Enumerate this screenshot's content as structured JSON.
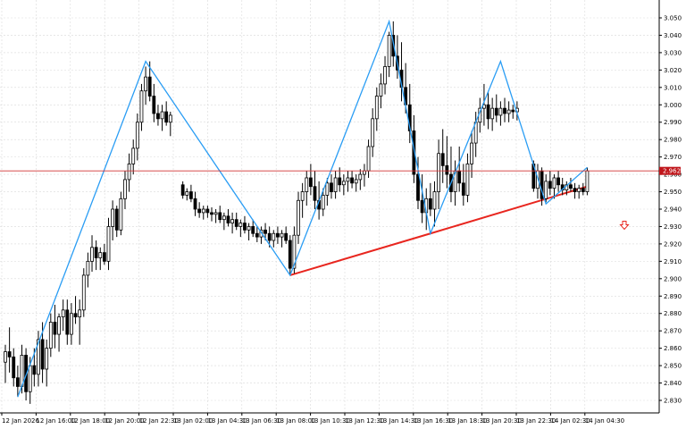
{
  "chart_data": {
    "type": "candlestick",
    "title": "",
    "xlabel": "",
    "ylabel": "",
    "ylim": [
      2.825,
      3.055
    ],
    "grid": true,
    "colors": {
      "background": "#ffffff",
      "grid": "#d9d9d9",
      "candle_outline": "#000000",
      "bull_body": "#ffffff",
      "bear_body": "#000000",
      "zigzag": "#2a9df4",
      "trendline": "#e8261f",
      "current_price_line": "#d03434",
      "current_price_tag": "#c0161b",
      "sell_arrow": "#e8261f"
    },
    "y_ticks": [
      "3.050",
      "3.040",
      "3.030",
      "3.020",
      "3.010",
      "3.000",
      "2.990",
      "2.980",
      "2.970",
      "2.960",
      "2.950",
      "2.940",
      "2.930",
      "2.920",
      "2.910",
      "2.900",
      "2.890",
      "2.880",
      "2.870",
      "2.860",
      "2.850",
      "2.840",
      "2.830"
    ],
    "x_ticks": [
      "12 Jan 2026",
      "12 Jan 16:00",
      "12 Jan 18:00",
      "12 Jan 20:00",
      "12 Jan 22:30",
      "13 Jan 02:00",
      "13 Jan 04:30",
      "13 Jan 06:30",
      "13 Jan 08:00",
      "13 Jan 10:30",
      "13 Jan 12:30",
      "13 Jan 14:30",
      "13 Jan 16:30",
      "13 Jan 18:30",
      "13 Jan 20:30",
      "13 Jan 22:30",
      "14 Jan 02:30",
      "14 Jan 04:30"
    ],
    "current_price": 2.962,
    "current_price_label": "2.962",
    "candles": [
      {
        "i": 0,
        "o": 2.852,
        "h": 2.862,
        "l": 2.84,
        "c": 2.858
      },
      {
        "i": 1,
        "o": 2.858,
        "h": 2.872,
        "l": 2.846,
        "c": 2.855
      },
      {
        "i": 2,
        "o": 2.855,
        "h": 2.86,
        "l": 2.838,
        "c": 2.843
      },
      {
        "i": 3,
        "o": 2.843,
        "h": 2.85,
        "l": 2.832,
        "c": 2.838
      },
      {
        "i": 4,
        "o": 2.838,
        "h": 2.862,
        "l": 2.834,
        "c": 2.856
      },
      {
        "i": 5,
        "o": 2.856,
        "h": 2.86,
        "l": 2.83,
        "c": 2.835
      },
      {
        "i": 6,
        "o": 2.835,
        "h": 2.855,
        "l": 2.828,
        "c": 2.85
      },
      {
        "i": 7,
        "o": 2.85,
        "h": 2.86,
        "l": 2.838,
        "c": 2.845
      },
      {
        "i": 8,
        "o": 2.845,
        "h": 2.87,
        "l": 2.838,
        "c": 2.865
      },
      {
        "i": 9,
        "o": 2.865,
        "h": 2.875,
        "l": 2.84,
        "c": 2.848
      },
      {
        "i": 10,
        "o": 2.848,
        "h": 2.865,
        "l": 2.838,
        "c": 2.86
      },
      {
        "i": 11,
        "o": 2.86,
        "h": 2.88,
        "l": 2.855,
        "c": 2.875
      },
      {
        "i": 12,
        "o": 2.875,
        "h": 2.885,
        "l": 2.86,
        "c": 2.868
      },
      {
        "i": 13,
        "o": 2.868,
        "h": 2.88,
        "l": 2.858,
        "c": 2.878
      },
      {
        "i": 14,
        "o": 2.878,
        "h": 2.888,
        "l": 2.87,
        "c": 2.882
      },
      {
        "i": 15,
        "o": 2.882,
        "h": 2.888,
        "l": 2.862,
        "c": 2.868
      },
      {
        "i": 16,
        "o": 2.868,
        "h": 2.886,
        "l": 2.862,
        "c": 2.88
      },
      {
        "i": 17,
        "o": 2.88,
        "h": 2.89,
        "l": 2.874,
        "c": 2.878
      },
      {
        "i": 18,
        "o": 2.878,
        "h": 2.888,
        "l": 2.862,
        "c": 2.882
      },
      {
        "i": 19,
        "o": 2.882,
        "h": 2.906,
        "l": 2.878,
        "c": 2.902
      },
      {
        "i": 20,
        "o": 2.902,
        "h": 2.915,
        "l": 2.895,
        "c": 2.91
      },
      {
        "i": 21,
        "o": 2.91,
        "h": 2.925,
        "l": 2.904,
        "c": 2.918
      },
      {
        "i": 22,
        "o": 2.918,
        "h": 2.922,
        "l": 2.905,
        "c": 2.912
      },
      {
        "i": 23,
        "o": 2.912,
        "h": 2.918,
        "l": 2.905,
        "c": 2.915
      },
      {
        "i": 24,
        "o": 2.915,
        "h": 2.92,
        "l": 2.908,
        "c": 2.91
      },
      {
        "i": 25,
        "o": 2.91,
        "h": 2.935,
        "l": 2.905,
        "c": 2.93
      },
      {
        "i": 26,
        "o": 2.93,
        "h": 2.945,
        "l": 2.922,
        "c": 2.94
      },
      {
        "i": 27,
        "o": 2.94,
        "h": 2.942,
        "l": 2.924,
        "c": 2.928
      },
      {
        "i": 28,
        "o": 2.928,
        "h": 2.95,
        "l": 2.925,
        "c": 2.946
      },
      {
        "i": 29,
        "o": 2.946,
        "h": 2.962,
        "l": 2.94,
        "c": 2.957
      },
      {
        "i": 30,
        "o": 2.957,
        "h": 2.972,
        "l": 2.95,
        "c": 2.966
      },
      {
        "i": 31,
        "o": 2.966,
        "h": 2.98,
        "l": 2.96,
        "c": 2.975
      },
      {
        "i": 32,
        "o": 2.975,
        "h": 2.995,
        "l": 2.968,
        "c": 2.99
      },
      {
        "i": 33,
        "o": 2.99,
        "h": 3.012,
        "l": 2.985,
        "c": 3.008
      },
      {
        "i": 34,
        "o": 3.008,
        "h": 3.022,
        "l": 3.0,
        "c": 3.016
      },
      {
        "i": 35,
        "o": 3.016,
        "h": 3.025,
        "l": 3.002,
        "c": 3.005
      },
      {
        "i": 36,
        "o": 3.005,
        "h": 3.012,
        "l": 2.99,
        "c": 2.995
      },
      {
        "i": 37,
        "o": 2.995,
        "h": 3.0,
        "l": 2.988,
        "c": 2.992
      },
      {
        "i": 38,
        "o": 2.992,
        "h": 3.0,
        "l": 2.985,
        "c": 2.996
      },
      {
        "i": 39,
        "o": 2.996,
        "h": 3.002,
        "l": 2.988,
        "c": 2.99
      },
      {
        "i": 40,
        "o": 2.99,
        "h": 2.996,
        "l": 2.982,
        "c": 2.994
      },
      {
        "i": 43,
        "o": 2.954,
        "h": 2.956,
        "l": 2.946,
        "c": 2.948
      },
      {
        "i": 44,
        "o": 2.948,
        "h": 2.952,
        "l": 2.945,
        "c": 2.95
      },
      {
        "i": 45,
        "o": 2.95,
        "h": 2.954,
        "l": 2.944,
        "c": 2.946
      },
      {
        "i": 46,
        "o": 2.946,
        "h": 2.95,
        "l": 2.936,
        "c": 2.94
      },
      {
        "i": 47,
        "o": 2.94,
        "h": 2.944,
        "l": 2.935,
        "c": 2.938
      },
      {
        "i": 48,
        "o": 2.938,
        "h": 2.942,
        "l": 2.934,
        "c": 2.94
      },
      {
        "i": 49,
        "o": 2.94,
        "h": 2.942,
        "l": 2.935,
        "c": 2.938
      },
      {
        "i": 50,
        "o": 2.938,
        "h": 2.941,
        "l": 2.933,
        "c": 2.937
      },
      {
        "i": 51,
        "o": 2.937,
        "h": 2.94,
        "l": 2.932,
        "c": 2.938
      },
      {
        "i": 52,
        "o": 2.938,
        "h": 2.942,
        "l": 2.932,
        "c": 2.934
      },
      {
        "i": 53,
        "o": 2.934,
        "h": 2.938,
        "l": 2.928,
        "c": 2.936
      },
      {
        "i": 54,
        "o": 2.936,
        "h": 2.94,
        "l": 2.93,
        "c": 2.932
      },
      {
        "i": 55,
        "o": 2.932,
        "h": 2.938,
        "l": 2.926,
        "c": 2.934
      },
      {
        "i": 56,
        "o": 2.934,
        "h": 2.938,
        "l": 2.928,
        "c": 2.93
      },
      {
        "i": 57,
        "o": 2.93,
        "h": 2.934,
        "l": 2.924,
        "c": 2.932
      },
      {
        "i": 58,
        "o": 2.932,
        "h": 2.936,
        "l": 2.926,
        "c": 2.928
      },
      {
        "i": 59,
        "o": 2.928,
        "h": 2.932,
        "l": 2.922,
        "c": 2.93
      },
      {
        "i": 60,
        "o": 2.93,
        "h": 2.934,
        "l": 2.924,
        "c": 2.926
      },
      {
        "i": 61,
        "o": 2.926,
        "h": 2.93,
        "l": 2.921,
        "c": 2.924
      },
      {
        "i": 62,
        "o": 2.924,
        "h": 2.93,
        "l": 2.92,
        "c": 2.928
      },
      {
        "i": 63,
        "o": 2.928,
        "h": 2.932,
        "l": 2.922,
        "c": 2.926
      },
      {
        "i": 64,
        "o": 2.926,
        "h": 2.93,
        "l": 2.918,
        "c": 2.922
      },
      {
        "i": 65,
        "o": 2.922,
        "h": 2.928,
        "l": 2.918,
        "c": 2.926
      },
      {
        "i": 66,
        "o": 2.926,
        "h": 2.93,
        "l": 2.92,
        "c": 2.924
      },
      {
        "i": 67,
        "o": 2.924,
        "h": 2.928,
        "l": 2.918,
        "c": 2.926
      },
      {
        "i": 68,
        "o": 2.926,
        "h": 2.93,
        "l": 2.92,
        "c": 2.922
      },
      {
        "i": 69,
        "o": 2.922,
        "h": 2.925,
        "l": 2.902,
        "c": 2.906
      },
      {
        "i": 70,
        "o": 2.906,
        "h": 2.93,
        "l": 2.903,
        "c": 2.925
      },
      {
        "i": 71,
        "o": 2.925,
        "h": 2.95,
        "l": 2.92,
        "c": 2.945
      },
      {
        "i": 72,
        "o": 2.945,
        "h": 2.955,
        "l": 2.935,
        "c": 2.95
      },
      {
        "i": 73,
        "o": 2.95,
        "h": 2.962,
        "l": 2.942,
        "c": 2.958
      },
      {
        "i": 74,
        "o": 2.958,
        "h": 2.966,
        "l": 2.948,
        "c": 2.953
      },
      {
        "i": 75,
        "o": 2.953,
        "h": 2.962,
        "l": 2.94,
        "c": 2.945
      },
      {
        "i": 76,
        "o": 2.945,
        "h": 2.956,
        "l": 2.934,
        "c": 2.94
      },
      {
        "i": 77,
        "o": 2.94,
        "h": 2.952,
        "l": 2.936,
        "c": 2.948
      },
      {
        "i": 78,
        "o": 2.948,
        "h": 2.958,
        "l": 2.942,
        "c": 2.955
      },
      {
        "i": 79,
        "o": 2.955,
        "h": 2.96,
        "l": 2.946,
        "c": 2.95
      },
      {
        "i": 80,
        "o": 2.95,
        "h": 2.962,
        "l": 2.946,
        "c": 2.958
      },
      {
        "i": 81,
        "o": 2.958,
        "h": 2.964,
        "l": 2.95,
        "c": 2.954
      },
      {
        "i": 82,
        "o": 2.954,
        "h": 2.96,
        "l": 2.948,
        "c": 2.956
      },
      {
        "i": 83,
        "o": 2.956,
        "h": 2.962,
        "l": 2.95,
        "c": 2.958
      },
      {
        "i": 84,
        "o": 2.958,
        "h": 2.962,
        "l": 2.952,
        "c": 2.955
      },
      {
        "i": 85,
        "o": 2.955,
        "h": 2.96,
        "l": 2.95,
        "c": 2.957
      },
      {
        "i": 86,
        "o": 2.957,
        "h": 2.963,
        "l": 2.951,
        "c": 2.96
      },
      {
        "i": 87,
        "o": 2.96,
        "h": 2.966,
        "l": 2.953,
        "c": 2.962
      },
      {
        "i": 88,
        "o": 2.962,
        "h": 2.98,
        "l": 2.958,
        "c": 2.976
      },
      {
        "i": 89,
        "o": 2.976,
        "h": 2.998,
        "l": 2.97,
        "c": 2.992
      },
      {
        "i": 90,
        "o": 2.992,
        "h": 3.01,
        "l": 2.985,
        "c": 3.005
      },
      {
        "i": 91,
        "o": 3.005,
        "h": 3.018,
        "l": 2.998,
        "c": 3.012
      },
      {
        "i": 92,
        "o": 3.012,
        "h": 3.028,
        "l": 3.006,
        "c": 3.022
      },
      {
        "i": 93,
        "o": 3.022,
        "h": 3.042,
        "l": 3.016,
        "c": 3.04
      },
      {
        "i": 94,
        "o": 3.04,
        "h": 3.048,
        "l": 3.022,
        "c": 3.028
      },
      {
        "i": 95,
        "o": 3.028,
        "h": 3.04,
        "l": 3.015,
        "c": 3.02
      },
      {
        "i": 96,
        "o": 3.02,
        "h": 3.036,
        "l": 3.002,
        "c": 3.01
      },
      {
        "i": 97,
        "o": 3.01,
        "h": 3.024,
        "l": 2.995,
        "c": 3.0
      },
      {
        "i": 98,
        "o": 3.0,
        "h": 3.012,
        "l": 2.978,
        "c": 2.985
      },
      {
        "i": 99,
        "o": 2.985,
        "h": 2.994,
        "l": 2.955,
        "c": 2.96
      },
      {
        "i": 100,
        "o": 2.96,
        "h": 2.97,
        "l": 2.94,
        "c": 2.945
      },
      {
        "i": 101,
        "o": 2.945,
        "h": 2.96,
        "l": 2.932,
        "c": 2.938
      },
      {
        "i": 102,
        "o": 2.938,
        "h": 2.952,
        "l": 2.928,
        "c": 2.946
      },
      {
        "i": 103,
        "o": 2.946,
        "h": 2.955,
        "l": 2.936,
        "c": 2.94
      },
      {
        "i": 104,
        "o": 2.94,
        "h": 2.956,
        "l": 2.93,
        "c": 2.95
      },
      {
        "i": 105,
        "o": 2.95,
        "h": 2.98,
        "l": 2.94,
        "c": 2.972
      },
      {
        "i": 106,
        "o": 2.972,
        "h": 2.986,
        "l": 2.955,
        "c": 2.965
      },
      {
        "i": 107,
        "o": 2.965,
        "h": 2.982,
        "l": 2.952,
        "c": 2.96
      },
      {
        "i": 108,
        "o": 2.96,
        "h": 2.976,
        "l": 2.944,
        "c": 2.95
      },
      {
        "i": 109,
        "o": 2.95,
        "h": 2.968,
        "l": 2.942,
        "c": 2.962
      },
      {
        "i": 110,
        "o": 2.962,
        "h": 2.976,
        "l": 2.95,
        "c": 2.955
      },
      {
        "i": 111,
        "o": 2.955,
        "h": 2.966,
        "l": 2.942,
        "c": 2.948
      },
      {
        "i": 112,
        "o": 2.948,
        "h": 2.972,
        "l": 2.944,
        "c": 2.966
      },
      {
        "i": 113,
        "o": 2.966,
        "h": 2.985,
        "l": 2.958,
        "c": 2.978
      },
      {
        "i": 114,
        "o": 2.978,
        "h": 2.996,
        "l": 2.97,
        "c": 2.99
      },
      {
        "i": 115,
        "o": 2.99,
        "h": 3.004,
        "l": 2.984,
        "c": 2.998
      },
      {
        "i": 116,
        "o": 2.998,
        "h": 3.012,
        "l": 2.988,
        "c": 3.0
      },
      {
        "i": 117,
        "o": 3.0,
        "h": 3.008,
        "l": 2.986,
        "c": 2.992
      },
      {
        "i": 118,
        "o": 2.992,
        "h": 3.004,
        "l": 2.985,
        "c": 2.998
      },
      {
        "i": 119,
        "o": 2.998,
        "h": 3.006,
        "l": 2.99,
        "c": 2.994
      },
      {
        "i": 120,
        "o": 2.994,
        "h": 3.002,
        "l": 2.988,
        "c": 2.998
      },
      {
        "i": 121,
        "o": 2.998,
        "h": 3.004,
        "l": 2.99,
        "c": 2.995
      },
      {
        "i": 122,
        "o": 2.995,
        "h": 3.002,
        "l": 2.99,
        "c": 2.997
      },
      {
        "i": 123,
        "o": 2.997,
        "h": 3.0,
        "l": 2.992,
        "c": 2.996
      },
      {
        "i": 124,
        "o": 2.996,
        "h": 3.002,
        "l": 2.991,
        "c": 2.998
      },
      {
        "i": 128,
        "o": 2.966,
        "h": 2.968,
        "l": 2.95,
        "c": 2.952
      },
      {
        "i": 129,
        "o": 2.952,
        "h": 2.966,
        "l": 2.946,
        "c": 2.962
      },
      {
        "i": 130,
        "o": 2.962,
        "h": 2.964,
        "l": 2.942,
        "c": 2.946
      },
      {
        "i": 131,
        "o": 2.946,
        "h": 2.96,
        "l": 2.944,
        "c": 2.956
      },
      {
        "i": 132,
        "o": 2.956,
        "h": 2.962,
        "l": 2.948,
        "c": 2.952
      },
      {
        "i": 133,
        "o": 2.952,
        "h": 2.96,
        "l": 2.946,
        "c": 2.958
      },
      {
        "i": 134,
        "o": 2.958,
        "h": 2.962,
        "l": 2.95,
        "c": 2.954
      },
      {
        "i": 135,
        "o": 2.954,
        "h": 2.958,
        "l": 2.948,
        "c": 2.951
      },
      {
        "i": 136,
        "o": 2.951,
        "h": 2.956,
        "l": 2.948,
        "c": 2.954
      },
      {
        "i": 137,
        "o": 2.954,
        "h": 2.958,
        "l": 2.95,
        "c": 2.952
      },
      {
        "i": 138,
        "o": 2.952,
        "h": 2.955,
        "l": 2.946,
        "c": 2.95
      },
      {
        "i": 139,
        "o": 2.95,
        "h": 2.954,
        "l": 2.946,
        "c": 2.952
      },
      {
        "i": 140,
        "o": 2.952,
        "h": 2.955,
        "l": 2.948,
        "c": 2.95
      },
      {
        "i": 141,
        "o": 2.95,
        "h": 2.964,
        "l": 2.948,
        "c": 2.962
      }
    ],
    "zigzag": [
      {
        "i": 3,
        "y": 2.832
      },
      {
        "i": 34,
        "y": 3.025
      },
      {
        "i": 69,
        "y": 2.902
      },
      {
        "i": 93,
        "y": 3.048
      },
      {
        "i": 103,
        "y": 2.926
      },
      {
        "i": 120,
        "y": 3.025
      },
      {
        "i": 131,
        "y": 2.943
      },
      {
        "i": 141,
        "y": 2.964
      }
    ],
    "trendline": [
      {
        "i": 69,
        "y": 2.902
      },
      {
        "i": 103,
        "y": 2.926
      },
      {
        "i": 141,
        "y": 2.953
      }
    ],
    "sell_signal": {
      "i": 150,
      "y": 2.931
    }
  }
}
